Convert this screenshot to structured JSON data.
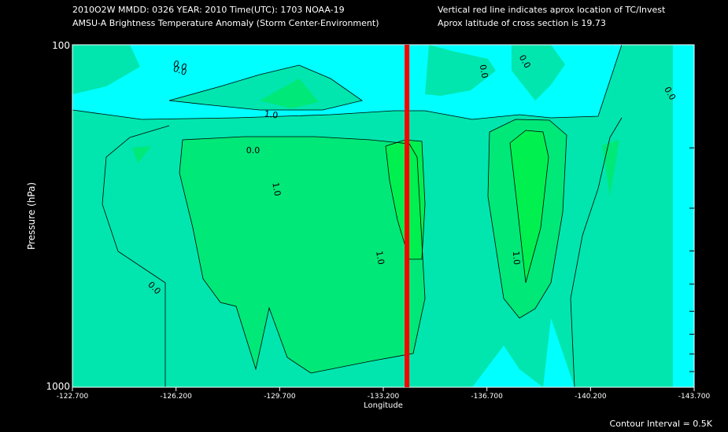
{
  "header": {
    "line1_left": "2010O2W  MMDD: 0326 YEAR: 2010 Time(UTC): 1703 NOAA-19",
    "line2_left": "AMSU-A Brightness Temperature Anomaly (Storm Center-Environment)",
    "line1_right": "Vertical red line indicates aprox location of TC/Invest",
    "line2_right": "Aprox latitude of cross section is 19.73"
  },
  "footer": {
    "contour_interval": "Contour Interval = 0.5K"
  },
  "colors": {
    "background": "#000000",
    "level_neg": "#00ffff",
    "level_0": "#00e6ae",
    "level_1": "#00e878",
    "level_2": "#00f050",
    "storm_line": "#ff0000",
    "contour": "#000000"
  },
  "chart_data": {
    "type": "heatmap",
    "title": "AMSU-A Brightness Temperature Anomaly (Storm Center-Environment)",
    "xlabel": "Longitude",
    "ylabel": "Pressure (hPa)",
    "y_scale": "log",
    "xlim": [
      -122.7,
      -143.7
    ],
    "ylim": [
      1000,
      100
    ],
    "x_ticks": [
      -122.7,
      -126.2,
      -129.7,
      -133.2,
      -136.7,
      -140.2,
      -143.7
    ],
    "x_tick_labels": [
      "-122.700",
      "-126.200",
      "-129.700",
      "-133.200",
      "-136.700",
      "-140.200",
      "-143.700"
    ],
    "y_tick_labels": [
      "100",
      "1000"
    ],
    "y_minor_ticks": [
      200,
      300,
      400,
      500,
      600,
      700,
      800,
      900
    ],
    "contour_interval_K": 0.5,
    "storm_longitude": -134.0,
    "contour_labels": [
      {
        "text": "0.0",
        "lon": -126.3,
        "p": 117,
        "rot": 20
      },
      {
        "text": "0.0",
        "lon": -126.3,
        "p": 121,
        "rot": 20
      },
      {
        "text": "1.0",
        "lon": -129.4,
        "p": 163,
        "rot": 8
      },
      {
        "text": "0.0",
        "lon": -128.8,
        "p": 207,
        "rot": 0
      },
      {
        "text": "1.0",
        "lon": -129.5,
        "p": 265,
        "rot": 80
      },
      {
        "text": "1.0",
        "lon": -133.0,
        "p": 420,
        "rot": 80
      },
      {
        "text": "0.0",
        "lon": -125.4,
        "p": 520,
        "rot": 45
      },
      {
        "text": "0.0",
        "lon": -136.5,
        "p": 120,
        "rot": 80
      },
      {
        "text": "0.0",
        "lon": -137.9,
        "p": 113,
        "rot": 60
      },
      {
        "text": "0.0",
        "lon": -142.8,
        "p": 140,
        "rot": 60
      },
      {
        "text": "1.0",
        "lon": -137.6,
        "p": 420,
        "rot": 85
      }
    ]
  }
}
